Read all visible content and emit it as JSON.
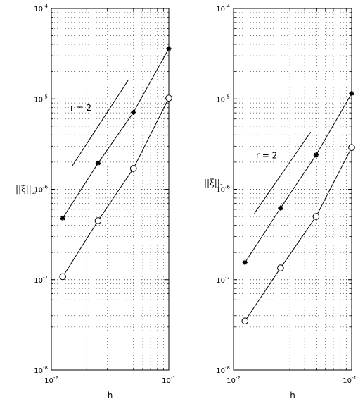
{
  "chart_data": [
    {
      "type": "line",
      "xscale": "log",
      "yscale": "log",
      "xlim": [
        0.01,
        0.1
      ],
      "ylim": [
        1e-08,
        0.0001
      ],
      "grid": true,
      "xlabel": "h",
      "ylabel": "||ξ||",
      "ylabel_subscript": "∞",
      "x_ticks": [
        {
          "base": "10",
          "exp": "-2"
        },
        {
          "base": "10",
          "exp": "-1"
        }
      ],
      "y_ticks": [
        {
          "base": "10",
          "exp": "-8"
        },
        {
          "base": "10",
          "exp": "-7"
        },
        {
          "base": "10",
          "exp": "-6"
        },
        {
          "base": "10",
          "exp": "-5"
        },
        {
          "base": "10",
          "exp": "-4"
        }
      ],
      "series": [
        {
          "marker": "star",
          "x": [
            0.0125,
            0.025,
            0.05,
            0.1
          ],
          "y": [
            4.8e-07,
            1.95e-06,
            7.1e-06,
            3.6e-05
          ]
        },
        {
          "marker": "circle",
          "x": [
            0.0125,
            0.025,
            0.05,
            0.1
          ],
          "y": [
            1.08e-07,
            4.5e-07,
            1.7e-06,
            1.02e-05
          ]
        },
        {
          "marker": "none",
          "x": [
            0.015,
            0.045
          ],
          "y": [
            1.8e-06,
            1.6e-05
          ]
        }
      ],
      "annotation": {
        "text": "r = 2",
        "x": 0.0145,
        "y": 7.4e-06
      }
    },
    {
      "type": "line",
      "xscale": "log",
      "yscale": "log",
      "xlim": [
        0.01,
        0.1
      ],
      "ylim": [
        1e-08,
        0.0001
      ],
      "grid": true,
      "xlabel": "h",
      "ylabel": "||ξ||",
      "ylabel_subscript": "1",
      "x_ticks": [
        {
          "base": "10",
          "exp": "-2"
        },
        {
          "base": "10",
          "exp": "-1"
        }
      ],
      "y_ticks": [
        {
          "base": "10",
          "exp": "-8"
        },
        {
          "base": "10",
          "exp": "-7"
        },
        {
          "base": "10",
          "exp": "-6"
        },
        {
          "base": "10",
          "exp": "-5"
        },
        {
          "base": "10",
          "exp": "-4"
        }
      ],
      "series": [
        {
          "marker": "star",
          "x": [
            0.0125,
            0.025,
            0.05,
            0.1
          ],
          "y": [
            1.55e-07,
            6.2e-07,
            2.4e-06,
            1.15e-05
          ]
        },
        {
          "marker": "circle",
          "x": [
            0.0125,
            0.025,
            0.05,
            0.1
          ],
          "y": [
            3.5e-08,
            1.35e-07,
            5e-07,
            2.9e-06
          ]
        },
        {
          "marker": "none",
          "x": [
            0.015,
            0.045
          ],
          "y": [
            5.4e-07,
            4.3e-06
          ]
        }
      ],
      "annotation": {
        "text": "r = 2",
        "x": 0.0155,
        "y": 2.2e-06
      }
    }
  ]
}
